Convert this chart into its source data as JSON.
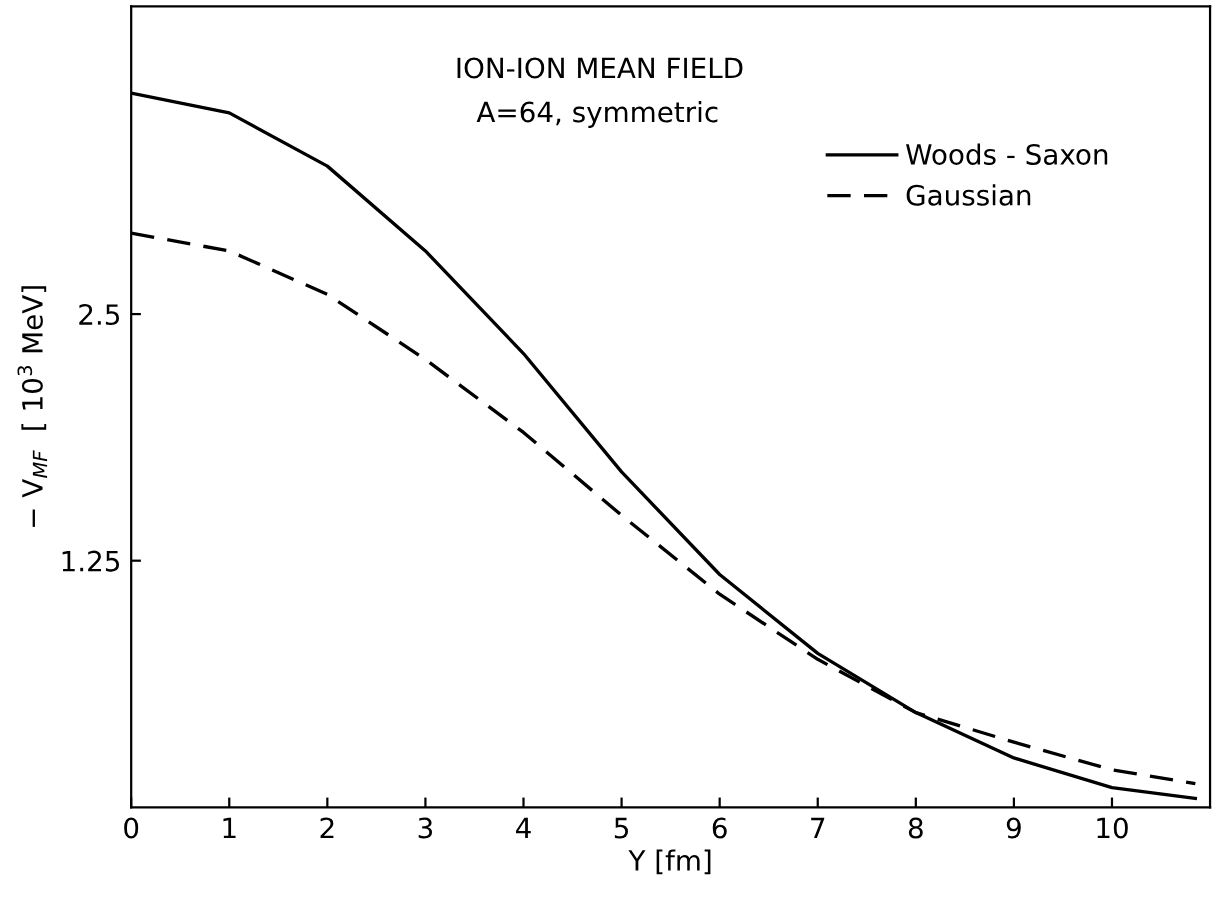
{
  "chart_data": {
    "type": "line",
    "x": [
      0,
      1,
      2,
      3,
      4,
      5,
      6,
      7,
      8,
      9,
      10,
      10.85
    ],
    "series": [
      {
        "name": "Woods - Saxon",
        "color": "#000000",
        "line_style": "solid",
        "values": [
          3.62,
          3.52,
          3.25,
          2.82,
          2.3,
          1.7,
          1.18,
          0.78,
          0.48,
          0.25,
          0.1,
          0.045
        ]
      },
      {
        "name": "Gaussian",
        "color": "#000000",
        "line_style": "dashed",
        "values": [
          2.91,
          2.82,
          2.6,
          2.27,
          1.9,
          1.48,
          1.08,
          0.75,
          0.48,
          0.33,
          0.19,
          0.12
        ]
      }
    ],
    "xlabel": "Y [fm]",
    "ylabel": "− V$_{MF}$  [ 10$^{3}$ MeV]",
    "annotations": [
      "ION-ION MEAN FIELD",
      "A=64, symmetric"
    ],
    "xlim": [
      0,
      11
    ],
    "ylim": [
      0,
      4.06
    ],
    "xticks": [
      0,
      1,
      2,
      3,
      4,
      5,
      6,
      7,
      8,
      9,
      10
    ],
    "yticks": [
      1.25,
      2.5
    ],
    "grid": false,
    "legend": "top right",
    "marker": "none"
  }
}
